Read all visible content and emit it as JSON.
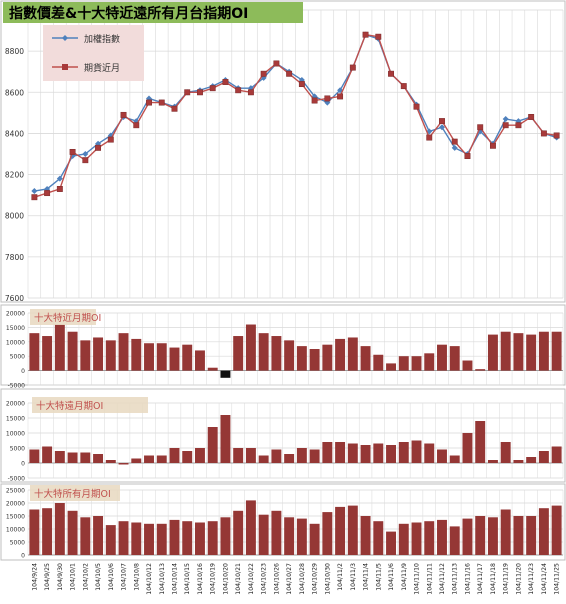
{
  "colors": {
    "title_bg": "#8dbb5a",
    "legend_bg": "#f2dcdb",
    "index_line": "#4f81bd",
    "futures_line": "#c0504d",
    "futures_marker": "#a83a3a",
    "bar": "#953735",
    "bar_negative": "#111111",
    "subtitle_bg": "#e8d8c0",
    "subtitle_text": "#c0504d",
    "grid": "#d9d9d9"
  },
  "x_labels": [
    "104/9/24",
    "104/9/25",
    "104/9/30",
    "104/10/1",
    "104/10/2",
    "104/10/5",
    "104/10/6",
    "104/10/7",
    "104/10/8",
    "104/10/12",
    "104/10/13",
    "104/10/14",
    "104/10/15",
    "104/10/16",
    "104/10/19",
    "104/10/20",
    "104/10/21",
    "104/10/22",
    "104/10/23",
    "104/10/26",
    "104/10/27",
    "104/10/28",
    "104/10/29",
    "104/10/30",
    "104/11/2",
    "104/11/3",
    "104/11/4",
    "104/11/5",
    "104/11/6",
    "104/11/9",
    "104/11/10",
    "104/11/11",
    "104/11/12",
    "104/11/13",
    "104/11/16",
    "104/11/17",
    "104/11/18",
    "104/11/19",
    "104/11/20",
    "104/11/23",
    "104/11/24",
    "104/11/25"
  ],
  "chart_data": [
    {
      "type": "line",
      "title": "指數價差&十大特近遠所有月台指期OI",
      "ylim": [
        7600,
        9000
      ],
      "yticks": [
        7600,
        7800,
        8000,
        8200,
        8400,
        8600,
        8800,
        9000
      ],
      "grid": true,
      "legend_position": "top-left",
      "series": [
        {
          "name": "加權指數",
          "values": [
            8120,
            8130,
            8180,
            8290,
            8300,
            8350,
            8390,
            8480,
            8460,
            8570,
            8550,
            8530,
            8600,
            8610,
            8630,
            8660,
            8620,
            8620,
            8670,
            8740,
            8700,
            8660,
            8580,
            8550,
            8610,
            8720,
            8880,
            8860,
            8690,
            8630,
            8540,
            8410,
            8430,
            8330,
            8300,
            8410,
            8350,
            8470,
            8460,
            8480,
            8400,
            8380
          ]
        },
        {
          "name": "期貨近月",
          "values": [
            8090,
            8110,
            8130,
            8310,
            8270,
            8330,
            8370,
            8490,
            8440,
            8550,
            8550,
            8520,
            8600,
            8600,
            8620,
            8650,
            8610,
            8600,
            8690,
            8740,
            8690,
            8640,
            8560,
            8570,
            8580,
            8720,
            8880,
            8870,
            8690,
            8630,
            8530,
            8380,
            8460,
            8360,
            8290,
            8430,
            8340,
            8440,
            8440,
            8480,
            8400,
            8390
          ]
        }
      ]
    },
    {
      "type": "bar",
      "title": "十大特近月期OI",
      "ylim": [
        -5000,
        20000
      ],
      "yticks": [
        -5000,
        0,
        5000,
        10000,
        15000,
        20000
      ],
      "grid": true,
      "values": [
        13000,
        12000,
        16000,
        13500,
        10500,
        11500,
        10500,
        13000,
        11000,
        9500,
        9500,
        8000,
        9000,
        7000,
        1000,
        -2500,
        12000,
        16000,
        13000,
        12000,
        10500,
        8500,
        7500,
        9000,
        11000,
        11500,
        8500,
        5500,
        2500,
        5000,
        5000,
        6000,
        9000,
        8500,
        3500,
        500,
        12500,
        13500,
        13000,
        12500,
        13500,
        13500
      ]
    },
    {
      "type": "bar",
      "title": "十大特遠月期OI",
      "ylim": [
        -5000,
        20000
      ],
      "yticks": [
        -5000,
        0,
        5000,
        10000,
        15000,
        20000
      ],
      "grid": true,
      "values": [
        4500,
        5500,
        4000,
        3500,
        3500,
        3000,
        1000,
        -500,
        1500,
        2500,
        2500,
        5000,
        4000,
        5000,
        12000,
        16000,
        5000,
        5000,
        2500,
        4500,
        3000,
        5000,
        4500,
        7000,
        7000,
        6500,
        6000,
        6500,
        6000,
        7000,
        7500,
        6500,
        4500,
        2500,
        10000,
        14000,
        1000,
        7000,
        1000,
        2000,
        4000,
        5500
      ]
    },
    {
      "type": "bar",
      "title": "十大特所有月期OI",
      "ylim": [
        0,
        25000
      ],
      "yticks": [
        0,
        5000,
        10000,
        15000,
        20000,
        25000
      ],
      "grid": true,
      "values": [
        17500,
        18000,
        20000,
        17000,
        14500,
        15000,
        11500,
        13000,
        12500,
        12000,
        12000,
        13500,
        13000,
        12500,
        13000,
        14500,
        17000,
        21000,
        15500,
        17000,
        14500,
        14000,
        12000,
        16500,
        18500,
        19000,
        15000,
        13000,
        9000,
        12000,
        12500,
        13000,
        13500,
        11000,
        14000,
        15000,
        14500,
        17500,
        15000,
        15000,
        18000,
        19000
      ]
    }
  ]
}
